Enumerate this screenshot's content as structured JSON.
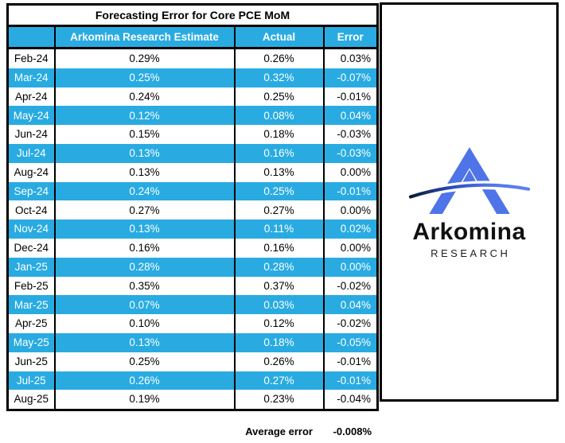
{
  "colors": {
    "table_accent": "#29ABE2",
    "logo_blue": "#4F74E8",
    "swoosh_dark": "#0B1C33",
    "border": "#000000"
  },
  "chart_data": {
    "type": "table",
    "title": "Forecasting Error for Core PCE MoM",
    "columns": [
      "",
      "Arkomina Research Estimate",
      "Actual",
      "Error"
    ],
    "rows": [
      [
        "Feb-24",
        "0.29%",
        "0.26%",
        "0.03%"
      ],
      [
        "Mar-24",
        "0.25%",
        "0.32%",
        "-0.07%"
      ],
      [
        "Apr-24",
        "0.24%",
        "0.25%",
        "-0.01%"
      ],
      [
        "May-24",
        "0.12%",
        "0.08%",
        "0.04%"
      ],
      [
        "Jun-24",
        "0.15%",
        "0.18%",
        "-0.03%"
      ],
      [
        "Jul-24",
        "0.13%",
        "0.16%",
        "-0.03%"
      ],
      [
        "Aug-24",
        "0.13%",
        "0.13%",
        "0.00%"
      ],
      [
        "Sep-24",
        "0.24%",
        "0.25%",
        "-0.01%"
      ],
      [
        "Oct-24",
        "0.27%",
        "0.27%",
        "0.00%"
      ],
      [
        "Nov-24",
        "0.13%",
        "0.11%",
        "0.02%"
      ],
      [
        "Dec-24",
        "0.16%",
        "0.16%",
        "0.00%"
      ],
      [
        "Jan-25",
        "0.28%",
        "0.28%",
        "0.00%"
      ],
      [
        "Feb-25",
        "0.35%",
        "0.37%",
        "-0.02%"
      ],
      [
        "Mar-25",
        "0.07%",
        "0.03%",
        "0.04%"
      ],
      [
        "Apr-25",
        "0.10%",
        "0.12%",
        "-0.02%"
      ],
      [
        "May-25",
        "0.13%",
        "0.18%",
        "-0.05%"
      ],
      [
        "Jun-25",
        "0.25%",
        "0.26%",
        "-0.01%"
      ],
      [
        "Jul-25",
        "0.26%",
        "0.27%",
        "-0.01%"
      ],
      [
        "Aug-25",
        "0.19%",
        "0.23%",
        "-0.04%"
      ]
    ],
    "footer": {
      "label": "Average error",
      "value": "-0.008%"
    },
    "row_striping": "alternating white / cyan starting white",
    "legend_position": "none",
    "grid": "column separators only"
  },
  "logo": {
    "wordmark": "Arkomina",
    "subtitle": "RESEARCH"
  }
}
